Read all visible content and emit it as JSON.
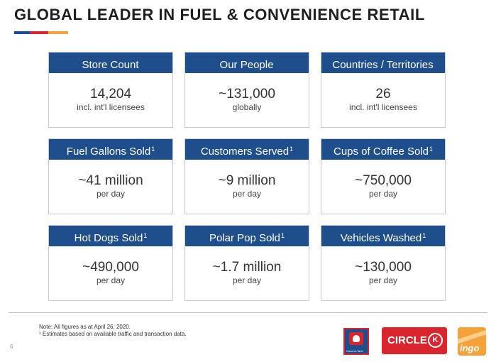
{
  "title": "GLOBAL LEADER IN FUEL & CONVENIENCE RETAIL",
  "accent_colors": [
    "#1a4b9a",
    "#d9262e",
    "#f5a23a"
  ],
  "header_color": "#1f4e8c",
  "cards": [
    {
      "label": "Store Count",
      "sup": "",
      "value": "14,204",
      "sub": "incl. int'l licensees"
    },
    {
      "label": "Our People",
      "sup": "",
      "value": "~131,000",
      "sub": "globally"
    },
    {
      "label": "Countries / Territories",
      "sup": "",
      "value": "26",
      "sub": "incl. int'l licensees"
    },
    {
      "label": "Fuel Gallons Sold",
      "sup": "1",
      "value": "~41 million",
      "sub": "per day"
    },
    {
      "label": "Customers Served",
      "sup": "1",
      "value": "~9 million",
      "sub": "per day"
    },
    {
      "label": "Cups of Coffee Sold",
      "sup": "1",
      "value": "~750,000",
      "sub": "per day"
    },
    {
      "label": "Hot Dogs Sold",
      "sup": "1",
      "value": "~490,000",
      "sub": "per day"
    },
    {
      "label": "Polar Pop Sold",
      "sup": "1",
      "value": "~1.7 million",
      "sub": "per day"
    },
    {
      "label": "Vehicles Washed",
      "sup": "1",
      "value": "~130,000",
      "sub": "per day"
    }
  ],
  "notes": {
    "line1": "Note: All figures as at April 26, 2020.",
    "line2": "¹ Estimates based on available traffic and transaction data."
  },
  "page_number": "6",
  "logos": {
    "couche_tard": "Couche-Tard",
    "circle_k": "CIRCLE",
    "circle_k_mark": "K",
    "ingo": "ingo"
  }
}
